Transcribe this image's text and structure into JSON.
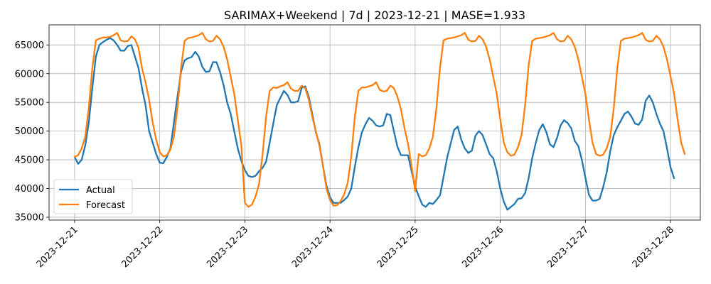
{
  "chart_data": {
    "type": "line",
    "title": "SARIMAX+Weekend | 7d | 2023-12-21 | MASE=1.933",
    "xlabel": "",
    "ylabel": "",
    "x_ticks": [
      "2023-12-21",
      "2023-12-22",
      "2023-12-23",
      "2023-12-24",
      "2023-12-25",
      "2023-12-26",
      "2023-12-27",
      "2023-12-28"
    ],
    "y_ticks": [
      35000,
      40000,
      45000,
      50000,
      55000,
      60000,
      65000
    ],
    "ylim": [
      34500,
      68500
    ],
    "xlim_days": [
      -0.3,
      7.35
    ],
    "grid": true,
    "legend_position": "lower-left",
    "colors": {
      "actual": "#1f77b4",
      "forecast": "#ff7f0e"
    },
    "x_step_hours": 1,
    "x_start": "2023-12-21T00:00",
    "series": [
      {
        "name": "Actual",
        "values": [
          45500,
          44300,
          45000,
          47500,
          51500,
          57500,
          63000,
          65000,
          65500,
          65900,
          66200,
          65800,
          65000,
          64000,
          64000,
          64800,
          65000,
          63000,
          61000,
          57500,
          54500,
          50000,
          48000,
          46000,
          44500,
          44400,
          45500,
          47000,
          51500,
          56000,
          60300,
          62300,
          62700,
          62900,
          63800,
          63000,
          61200,
          60300,
          60400,
          62000,
          62000,
          60300,
          58000,
          55000,
          53000,
          50000,
          47000,
          44800,
          43200,
          42200,
          42000,
          42200,
          43000,
          43600,
          44700,
          48000,
          51300,
          54500,
          55800,
          57000,
          56300,
          55000,
          55000,
          55200,
          57500,
          57800,
          56000,
          53000,
          49800,
          47800,
          44000,
          40500,
          38500,
          37500,
          37500,
          37500,
          38000,
          38600,
          40000,
          43800,
          47200,
          49800,
          51200,
          52300,
          51800,
          51000,
          50800,
          51000,
          53000,
          52800,
          50000,
          47300,
          45800,
          45800,
          45800,
          43000,
          40300,
          38700,
          37200,
          36800,
          37500,
          37300,
          38000,
          38800,
          42000,
          45300,
          47800,
          50200,
          50800,
          48500,
          47000,
          46200,
          46600,
          49200,
          50000,
          49300,
          47700,
          46000,
          45300,
          43000,
          40000,
          37700,
          36300,
          36800,
          37300,
          38200,
          38300,
          39200,
          41800,
          45300,
          47900,
          50200,
          51200,
          49800,
          47700,
          47200,
          48800,
          51000,
          51900,
          51400,
          50500,
          48300,
          47400,
          45000,
          41900,
          38900,
          37900,
          37900,
          38200,
          40200,
          42800,
          46500,
          49300,
          50700,
          51800,
          53000,
          53400,
          52500,
          51300,
          51100,
          52000,
          55300,
          56200,
          55000,
          53000,
          51300,
          50000,
          47000,
          43700,
          41800
        ]
      },
      {
        "name": "Forecast",
        "values": [
          45500,
          45800,
          47000,
          49000,
          54000,
          61000,
          65800,
          66100,
          66300,
          66300,
          66400,
          66700,
          67100,
          65800,
          65600,
          65700,
          66500,
          66000,
          64500,
          61000,
          58500,
          55500,
          51500,
          48500,
          46300,
          45600,
          45800,
          46800,
          49000,
          54000,
          61000,
          65700,
          66200,
          66300,
          66500,
          66700,
          67100,
          66000,
          65600,
          65700,
          66600,
          66000,
          64700,
          62500,
          59500,
          56500,
          52000,
          47500,
          37500,
          36800,
          37200,
          38600,
          40800,
          46000,
          52600,
          57000,
          57600,
          57500,
          57800,
          58000,
          58500,
          57400,
          57000,
          57000,
          57900,
          57500,
          55500,
          52500,
          50000,
          47500,
          44000,
          40000,
          38000,
          37000,
          37100,
          37800,
          39000,
          41000,
          45600,
          52500,
          57000,
          57600,
          57600,
          57800,
          58000,
          58500,
          57200,
          56900,
          57000,
          57900,
          57500,
          56000,
          53800,
          50500,
          47800,
          44000,
          39500,
          46000,
          45600,
          45800,
          47000,
          49000,
          54000,
          61000,
          65800,
          66100,
          66200,
          66300,
          66500,
          66700,
          67100,
          65900,
          65600,
          65700,
          66600,
          66000,
          64700,
          62500,
          59500,
          56500,
          52000,
          48000,
          46300,
          45700,
          45900,
          47200,
          49300,
          54500,
          61500,
          65700,
          66100,
          66200,
          66300,
          66500,
          66700,
          67100,
          66000,
          65600,
          65700,
          66600,
          66000,
          64700,
          62500,
          59500,
          56500,
          52000,
          48000,
          46000,
          45700,
          45900,
          47000,
          49000,
          54000,
          61000,
          65700,
          66100,
          66200,
          66300,
          66500,
          66700,
          67100,
          65900,
          65600,
          65700,
          66600,
          66000,
          64700,
          62500,
          59500,
          56500,
          52000,
          48000,
          46000
        ]
      }
    ]
  }
}
